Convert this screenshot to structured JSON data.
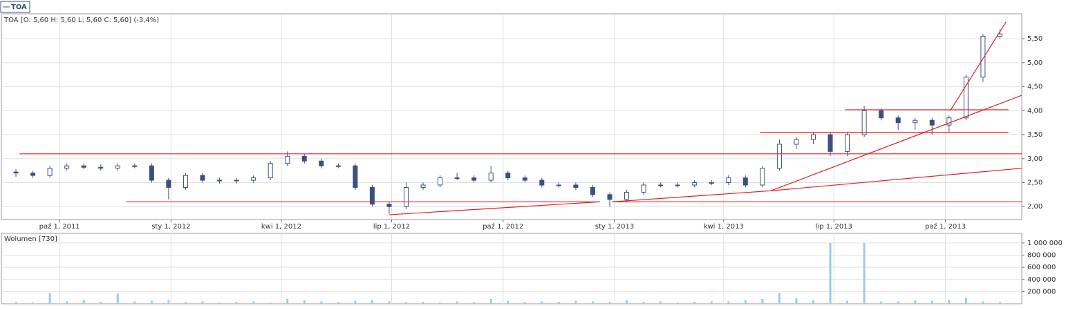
{
  "chart_data": {
    "type": "candlestick",
    "symbol": "TOA",
    "legend_text": "TOA [O: 5,60  H: 5,60  L: 5,60  C: 5,60] (-3,4%)",
    "volume_title": "Wolumen [730]",
    "x": [
      "2011-08-26",
      "2011-09-09",
      "2011-09-23",
      "2011-10-07",
      "2011-10-21",
      "2011-11-04",
      "2011-11-18",
      "2011-12-02",
      "2011-12-16",
      "2011-12-30",
      "2012-01-13",
      "2012-01-27",
      "2012-02-10",
      "2012-02-24",
      "2012-03-09",
      "2012-03-23",
      "2012-04-06",
      "2012-04-20",
      "2012-05-04",
      "2012-05-18",
      "2012-06-01",
      "2012-06-15",
      "2012-06-29",
      "2012-07-13",
      "2012-07-27",
      "2012-08-10",
      "2012-08-24",
      "2012-09-07",
      "2012-09-21",
      "2012-10-05",
      "2012-10-19",
      "2012-11-02",
      "2012-11-16",
      "2012-11-30",
      "2012-12-14",
      "2012-12-28",
      "2013-01-11",
      "2013-01-25",
      "2013-02-08",
      "2013-02-22",
      "2013-03-08",
      "2013-03-22",
      "2013-04-05",
      "2013-04-19",
      "2013-05-03",
      "2013-05-17",
      "2013-05-31",
      "2013-06-14",
      "2013-06-28",
      "2013-07-12",
      "2013-07-26",
      "2013-08-09",
      "2013-08-23",
      "2013-09-06",
      "2013-09-20",
      "2013-10-04",
      "2013-10-18",
      "2013-11-01",
      "2013-11-15"
    ],
    "open": [
      2.72,
      2.7,
      2.65,
      2.8,
      2.85,
      2.82,
      2.8,
      2.85,
      2.85,
      2.55,
      2.4,
      2.65,
      2.55,
      2.55,
      2.55,
      2.6,
      2.9,
      3.05,
      2.95,
      2.85,
      2.85,
      2.4,
      2.05,
      2.0,
      2.4,
      2.45,
      2.6,
      2.6,
      2.55,
      2.7,
      2.6,
      2.55,
      2.45,
      2.45,
      2.4,
      2.25,
      2.15,
      2.3,
      2.45,
      2.45,
      2.45,
      2.5,
      2.5,
      2.6,
      2.45,
      2.8,
      3.3,
      3.4,
      3.5,
      3.15,
      3.5,
      4.0,
      3.85,
      3.75,
      3.8,
      3.7,
      3.85,
      4.7,
      5.55
    ],
    "high": [
      2.78,
      2.75,
      2.85,
      2.9,
      2.9,
      2.88,
      2.9,
      2.9,
      2.9,
      2.6,
      2.7,
      2.7,
      2.6,
      2.6,
      2.65,
      2.95,
      3.15,
      3.1,
      3.0,
      2.9,
      2.9,
      2.45,
      2.1,
      2.5,
      2.5,
      2.65,
      2.7,
      2.65,
      2.85,
      2.75,
      2.65,
      2.6,
      2.5,
      2.5,
      2.45,
      2.3,
      2.35,
      2.5,
      2.5,
      2.5,
      2.55,
      2.55,
      2.65,
      2.65,
      2.85,
      3.4,
      3.45,
      3.55,
      3.55,
      3.55,
      4.1,
      4.05,
      3.9,
      3.85,
      3.85,
      3.9,
      4.75,
      5.6,
      5.7
    ],
    "low": [
      2.62,
      2.6,
      2.6,
      2.75,
      2.78,
      2.75,
      2.75,
      2.8,
      2.5,
      2.15,
      2.35,
      2.5,
      2.48,
      2.48,
      2.5,
      2.55,
      2.85,
      2.9,
      2.8,
      2.8,
      2.35,
      2.0,
      1.85,
      1.95,
      2.35,
      2.4,
      2.55,
      2.5,
      2.5,
      2.55,
      2.5,
      2.4,
      2.4,
      2.35,
      2.2,
      2.0,
      2.1,
      2.25,
      2.4,
      2.4,
      2.4,
      2.45,
      2.45,
      2.4,
      2.4,
      2.75,
      3.2,
      3.3,
      3.05,
      3.05,
      3.45,
      3.8,
      3.6,
      3.6,
      3.5,
      3.55,
      3.8,
      4.6,
      5.5
    ],
    "close": [
      2.7,
      2.65,
      2.8,
      2.85,
      2.82,
      2.8,
      2.85,
      2.85,
      2.55,
      2.4,
      2.65,
      2.55,
      2.55,
      2.55,
      2.6,
      2.9,
      3.05,
      2.95,
      2.85,
      2.85,
      2.4,
      2.05,
      2.0,
      2.4,
      2.45,
      2.6,
      2.6,
      2.55,
      2.7,
      2.6,
      2.55,
      2.45,
      2.45,
      2.4,
      2.25,
      2.15,
      2.3,
      2.45,
      2.45,
      2.45,
      2.5,
      2.5,
      2.6,
      2.45,
      2.8,
      3.3,
      3.4,
      3.5,
      3.15,
      3.5,
      4.0,
      3.85,
      3.75,
      3.8,
      3.7,
      3.85,
      4.7,
      5.55,
      5.6
    ],
    "volume": [
      30000,
      20000,
      180000,
      40000,
      60000,
      30000,
      170000,
      40000,
      50000,
      60000,
      30000,
      40000,
      20000,
      30000,
      40000,
      20000,
      80000,
      60000,
      40000,
      30000,
      50000,
      60000,
      40000,
      30000,
      30000,
      20000,
      40000,
      30000,
      80000,
      50000,
      30000,
      40000,
      30000,
      50000,
      40000,
      30000,
      60000,
      30000,
      40000,
      20000,
      30000,
      40000,
      40000,
      60000,
      80000,
      180000,
      90000,
      60000,
      1000000,
      50000,
      1000000,
      40000,
      40000,
      60000,
      50000,
      60000,
      100000,
      40000,
      30000
    ],
    "color": "#3a5080",
    "volume_color": "#9ccbe9",
    "line_color": "#e02020",
    "lines": [
      {
        "x": [
          "2011-08-29",
          "2013-12-03"
        ],
        "y": [
          3.1,
          3.1
        ]
      },
      {
        "x": [
          "2011-11-25",
          "2012-12-20"
        ],
        "y": [
          2.1,
          2.1
        ]
      },
      {
        "x": [
          "2012-12-30",
          "2013-12-03"
        ],
        "y": [
          2.1,
          2.1
        ]
      },
      {
        "x": [
          "2012-06-29",
          "2012-12-20"
        ],
        "y": [
          1.83,
          2.1
        ]
      },
      {
        "x": [
          "2012-12-30",
          "2013-05-10"
        ],
        "y": [
          2.1,
          2.33
        ]
      },
      {
        "x": [
          "2013-05-10",
          "2013-12-03"
        ],
        "y": [
          2.33,
          2.8
        ]
      },
      {
        "x": [
          "2013-05-10",
          "2013-12-03"
        ],
        "y": [
          2.33,
          4.32
        ]
      },
      {
        "x": [
          "2013-05-01",
          "2013-11-22"
        ],
        "y": [
          3.55,
          3.55
        ]
      },
      {
        "x": [
          "2013-07-10",
          "2013-11-22"
        ],
        "y": [
          4.02,
          4.02
        ]
      },
      {
        "x": [
          "2013-10-05",
          "2013-11-20"
        ],
        "y": [
          4.0,
          5.85
        ]
      }
    ],
    "xlim": [
      "2011-08-14",
      "2013-12-03"
    ],
    "xticks": [
      {
        "value": "2011-10-01",
        "label": "paź 1, 2011"
      },
      {
        "value": "2012-01-01",
        "label": "sty 1, 2012"
      },
      {
        "value": "2012-04-01",
        "label": "kwi 1, 2012"
      },
      {
        "value": "2012-07-01",
        "label": "lip 1, 2012"
      },
      {
        "value": "2012-10-01",
        "label": "paź 1, 2012"
      },
      {
        "value": "2013-01-01",
        "label": "sty 1, 2013"
      },
      {
        "value": "2013-04-01",
        "label": "kwi 1, 2013"
      },
      {
        "value": "2013-07-01",
        "label": "lip 1, 2013"
      },
      {
        "value": "2013-10-01",
        "label": "paź 1, 2013"
      }
    ],
    "ylim": [
      1.73,
      6.02
    ],
    "yticks": [
      {
        "value": 2,
        "label": "2,00"
      },
      {
        "value": 2.5,
        "label": "2,50"
      },
      {
        "value": 3,
        "label": "3,00"
      },
      {
        "value": 3.5,
        "label": "3,50"
      },
      {
        "value": 4,
        "label": "4,00"
      },
      {
        "value": 4.5,
        "label": "4,50"
      },
      {
        "value": 5,
        "label": "5,00"
      },
      {
        "value": 5.5,
        "label": "5,50"
      }
    ],
    "y2lim": [
      0,
      1158000
    ],
    "y2ticks": [
      {
        "value": 200000,
        "label": "200 000"
      },
      {
        "value": 400000,
        "label": "400 000"
      },
      {
        "value": 600000,
        "label": "600 000"
      },
      {
        "value": 800000,
        "label": "800 000"
      },
      {
        "value": 1000000,
        "label": "1 000 000"
      }
    ],
    "grid": true
  }
}
